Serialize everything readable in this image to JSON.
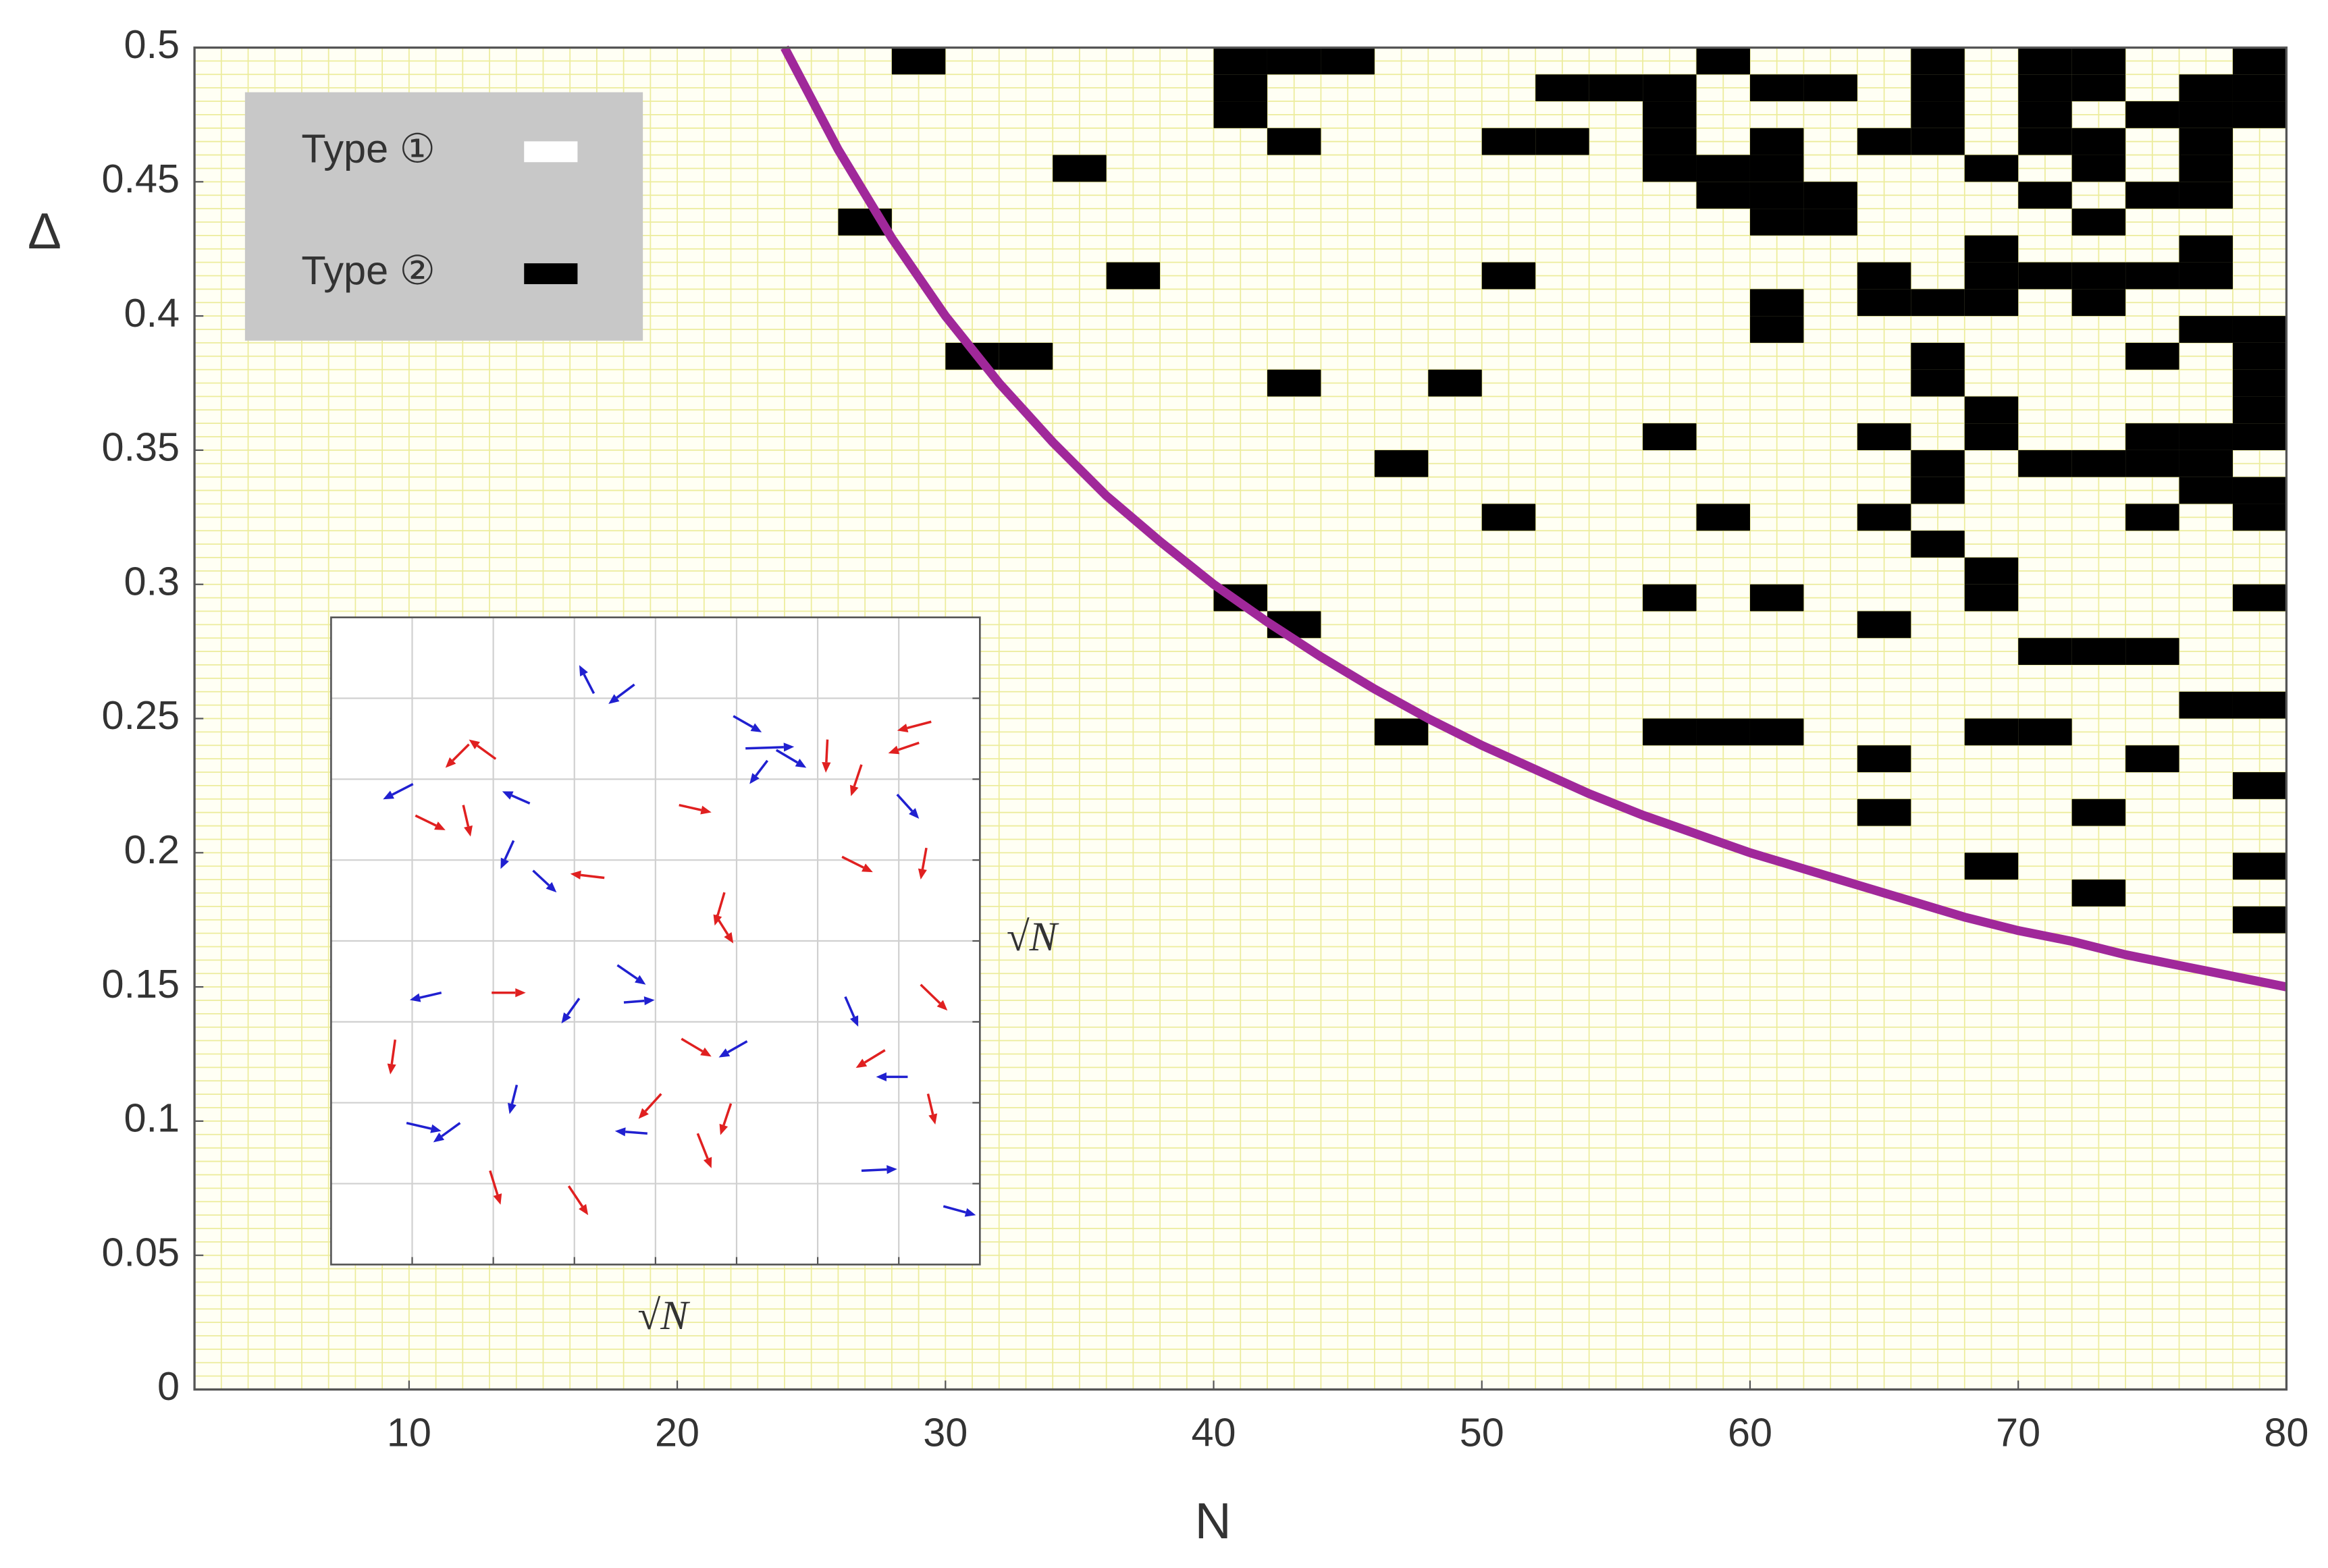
{
  "chart_data": [
    {
      "type": "heatmap",
      "xlabel": "N",
      "ylabel": "Δ",
      "xlim": [
        2,
        80
      ],
      "ylim": [
        0,
        0.5
      ],
      "xticks": [
        10,
        20,
        30,
        40,
        50,
        60,
        70,
        80
      ],
      "yticks": [
        0,
        0.05,
        0.1,
        0.15,
        0.2,
        0.25,
        0.3,
        0.35,
        0.4,
        0.45,
        0.5
      ],
      "grid": true,
      "minor_grid": {
        "x": 1,
        "y": 0.005
      },
      "cell_size": [
        2,
        0.01
      ],
      "legend": "upper left",
      "series": [
        {
          "name": "Type ①",
          "color": "#ffffff"
        },
        {
          "name": "Type ②",
          "color": "#000000",
          "rows": [
            {
              "y": 0.49,
              "x": [
                28,
                40,
                42,
                44,
                58,
                66,
                70,
                72,
                78
              ]
            },
            {
              "y": 0.48,
              "x": [
                40,
                52,
                54,
                56,
                60,
                62,
                66,
                70,
                72,
                76,
                78
              ]
            },
            {
              "y": 0.47,
              "x": [
                40,
                56,
                66,
                70,
                74,
                76,
                78
              ]
            },
            {
              "y": 0.46,
              "x": [
                42,
                50,
                52,
                56,
                60,
                64,
                66,
                70,
                72,
                76
              ]
            },
            {
              "y": 0.45,
              "x": [
                34,
                56,
                58,
                60,
                68,
                72,
                76
              ]
            },
            {
              "y": 0.44,
              "x": [
                58,
                60,
                62,
                70,
                74,
                76
              ]
            },
            {
              "y": 0.43,
              "x": [
                26,
                60,
                62,
                72
              ]
            },
            {
              "y": 0.42,
              "x": [
                68,
                76
              ]
            },
            {
              "y": 0.41,
              "x": [
                36,
                50,
                64,
                68,
                70,
                72,
                74,
                76
              ]
            },
            {
              "y": 0.4,
              "x": [
                60,
                64,
                66,
                68,
                72
              ]
            },
            {
              "y": 0.39,
              "x": [
                60,
                76,
                78
              ]
            },
            {
              "y": 0.38,
              "x": [
                30,
                32,
                66,
                74,
                78
              ]
            },
            {
              "y": 0.37,
              "x": [
                42,
                48,
                66,
                78
              ]
            },
            {
              "y": 0.36,
              "x": [
                68,
                78
              ]
            },
            {
              "y": 0.35,
              "x": [
                56,
                64,
                68,
                74,
                76,
                78
              ]
            },
            {
              "y": 0.34,
              "x": [
                46,
                66,
                70,
                72,
                74,
                76
              ]
            },
            {
              "y": 0.33,
              "x": [
                66,
                76,
                78
              ]
            },
            {
              "y": 0.32,
              "x": [
                50,
                58,
                64,
                74,
                78
              ]
            },
            {
              "y": 0.31,
              "x": [
                66
              ]
            },
            {
              "y": 0.3,
              "x": [
                68
              ]
            },
            {
              "y": 0.29,
              "x": [
                40,
                56,
                60,
                68,
                78
              ]
            },
            {
              "y": 0.28,
              "x": [
                42,
                64
              ]
            },
            {
              "y": 0.27,
              "x": [
                70,
                72,
                74
              ]
            },
            {
              "y": 0.25,
              "x": [
                76,
                78
              ]
            },
            {
              "y": 0.24,
              "x": [
                46,
                56,
                58,
                60,
                68,
                70
              ]
            },
            {
              "y": 0.23,
              "x": [
                64,
                74
              ]
            },
            {
              "y": 0.22,
              "x": [
                78
              ]
            },
            {
              "y": 0.21,
              "x": [
                64,
                72
              ]
            },
            {
              "y": 0.19,
              "x": [
                68,
                78
              ]
            },
            {
              "y": 0.18,
              "x": [
                72
              ]
            },
            {
              "y": 0.17,
              "x": [
                78
              ]
            }
          ]
        }
      ],
      "curve": {
        "color": "#a0289a",
        "x": [
          24,
          26,
          28,
          30,
          32,
          34,
          36,
          38,
          40,
          42,
          44,
          46,
          48,
          50,
          52,
          54,
          56,
          58,
          60,
          62,
          64,
          66,
          68,
          70,
          72,
          74,
          76,
          78,
          80
        ],
        "y": [
          0.5,
          0.462,
          0.429,
          0.4,
          0.375,
          0.353,
          0.333,
          0.316,
          0.3,
          0.286,
          0.273,
          0.261,
          0.25,
          0.24,
          0.231,
          0.222,
          0.214,
          0.207,
          0.2,
          0.194,
          0.188,
          0.182,
          0.176,
          0.171,
          0.167,
          0.162,
          0.158,
          0.154,
          0.15
        ]
      }
    },
    {
      "type": "quiver",
      "xlabel": "√N",
      "ylabel": "√N",
      "xlim": [
        0,
        8
      ],
      "ylim": [
        0,
        8
      ],
      "xticks": [
        1,
        2,
        3,
        4,
        5,
        6,
        7
      ],
      "yticks": [
        1,
        2,
        3,
        4,
        5,
        6,
        7
      ],
      "grid": true,
      "series": [
        {
          "color": "#2020d0",
          "arrows": [
            [
              3.24,
              7.06,
              3.06,
              7.41
            ],
            [
              3.74,
              7.17,
              3.42,
              6.93
            ],
            [
              4.96,
              6.78,
              5.31,
              6.58
            ],
            [
              5.11,
              6.38,
              5.71,
              6.4
            ],
            [
              5.38,
              6.23,
              5.16,
              5.94
            ],
            [
              5.49,
              6.36,
              5.86,
              6.14
            ],
            [
              1.01,
              5.94,
              0.64,
              5.75
            ],
            [
              2.45,
              5.7,
              2.11,
              5.85
            ],
            [
              6.98,
              5.81,
              7.25,
              5.51
            ],
            [
              2.25,
              5.24,
              2.09,
              4.89
            ],
            [
              2.49,
              4.87,
              2.78,
              4.6
            ],
            [
              3.53,
              3.7,
              3.88,
              3.46
            ],
            [
              1.36,
              3.36,
              0.97,
              3.27
            ],
            [
              3.61,
              3.24,
              3.99,
              3.27
            ],
            [
              3.06,
              3.29,
              2.84,
              2.98
            ],
            [
              6.34,
              3.31,
              6.5,
              2.94
            ],
            [
              5.13,
              2.76,
              4.78,
              2.56
            ],
            [
              7.11,
              2.32,
              6.72,
              2.32
            ],
            [
              2.29,
              2.22,
              2.2,
              1.86
            ],
            [
              0.93,
              1.75,
              1.36,
              1.65
            ],
            [
              1.59,
              1.75,
              1.26,
              1.51
            ],
            [
              3.9,
              1.62,
              3.5,
              1.65
            ],
            [
              6.54,
              1.16,
              6.98,
              1.18
            ],
            [
              7.55,
              0.72,
              7.95,
              0.61
            ]
          ]
        },
        {
          "color": "#e02020",
          "arrows": [
            [
              7.4,
              6.71,
              6.98,
              6.6
            ],
            [
              7.25,
              6.45,
              6.87,
              6.32
            ],
            [
              2.03,
              6.25,
              1.7,
              6.49
            ],
            [
              1.7,
              6.43,
              1.41,
              6.14
            ],
            [
              6.12,
              6.49,
              6.1,
              6.08
            ],
            [
              6.54,
              6.18,
              6.41,
              5.79
            ],
            [
              1.04,
              5.55,
              1.41,
              5.37
            ],
            [
              1.63,
              5.68,
              1.72,
              5.29
            ],
            [
              4.29,
              5.68,
              4.69,
              5.59
            ],
            [
              6.3,
              5.04,
              6.68,
              4.85
            ],
            [
              7.34,
              5.15,
              7.27,
              4.76
            ],
            [
              3.37,
              4.78,
              2.95,
              4.83
            ],
            [
              4.85,
              4.6,
              4.73,
              4.19
            ],
            [
              4.74,
              4.32,
              4.96,
              3.97
            ],
            [
              1.98,
              3.36,
              2.4,
              3.36
            ],
            [
              7.27,
              3.46,
              7.6,
              3.14
            ],
            [
              4.32,
              2.79,
              4.69,
              2.57
            ],
            [
              0.79,
              2.78,
              0.73,
              2.35
            ],
            [
              6.83,
              2.65,
              6.47,
              2.43
            ],
            [
              4.07,
              2.11,
              3.79,
              1.8
            ],
            [
              7.36,
              2.11,
              7.45,
              1.73
            ],
            [
              4.93,
              1.99,
              4.8,
              1.6
            ],
            [
              4.52,
              1.62,
              4.69,
              1.19
            ],
            [
              1.96,
              1.16,
              2.09,
              0.74
            ],
            [
              2.93,
              0.97,
              3.17,
              0.61
            ]
          ]
        }
      ]
    }
  ]
}
